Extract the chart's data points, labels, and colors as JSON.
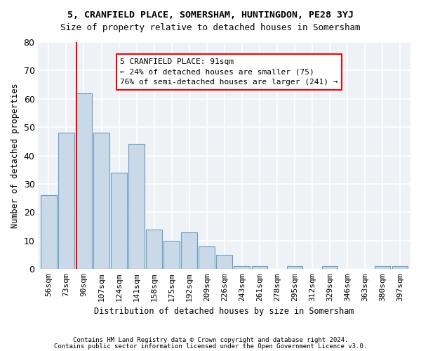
{
  "title1": "5, CRANFIELD PLACE, SOMERSHAM, HUNTINGDON, PE28 3YJ",
  "title2": "Size of property relative to detached houses in Somersham",
  "xlabel": "Distribution of detached houses by size in Somersham",
  "ylabel": "Number of detached properties",
  "bar_values": [
    26,
    48,
    62,
    48,
    34,
    44,
    14,
    10,
    13,
    8,
    5,
    1,
    1,
    0,
    1,
    0,
    1,
    0,
    0,
    1,
    1
  ],
  "bin_labels": [
    "56sqm",
    "73sqm",
    "90sqm",
    "107sqm",
    "124sqm",
    "141sqm",
    "158sqm",
    "175sqm",
    "192sqm",
    "209sqm",
    "226sqm",
    "243sqm",
    "261sqm",
    "278sqm",
    "295sqm",
    "312sqm",
    "329sqm",
    "346sqm",
    "363sqm",
    "380sqm",
    "397sqm"
  ],
  "bar_color": "#c9d9e8",
  "bar_edge_color": "#6b9dc2",
  "red_line_x": 1.575,
  "annotation_text": "5 CRANFIELD PLACE: 91sqm\n← 24% of detached houses are smaller (75)\n76% of semi-detached houses are larger (241) →",
  "footnote1": "Contains HM Land Registry data © Crown copyright and database right 2024.",
  "footnote2": "Contains public sector information licensed under the Open Government Licence v3.0.",
  "ylim": [
    0,
    80
  ],
  "ax_facecolor": "#eef2f7"
}
